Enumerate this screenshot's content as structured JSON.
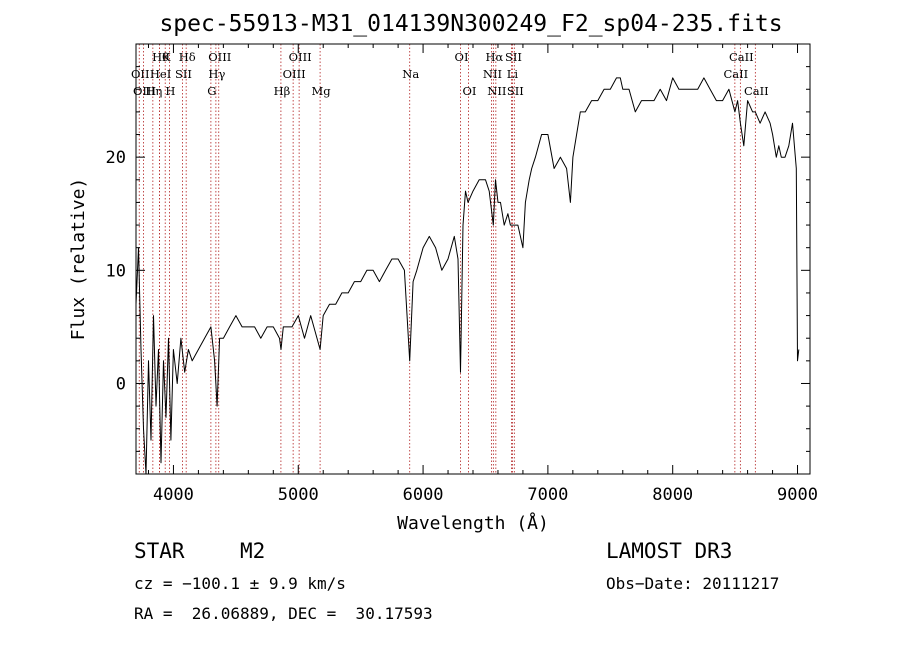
{
  "chart_data": {
    "type": "line",
    "title": "spec-55913-M31_014139N300249_F2_sp04-235.fits",
    "xlabel": "Wavelength (Å)",
    "ylabel": "Flux (relative)",
    "xlim": [
      3700,
      9100
    ],
    "ylim": [
      -8,
      30
    ],
    "x_ticks": [
      4000,
      5000,
      6000,
      7000,
      8000,
      9000
    ],
    "y_ticks": [
      0,
      10,
      20
    ],
    "series": [
      {
        "name": "spectrum",
        "x": [
          3700,
          3720,
          3740,
          3760,
          3780,
          3800,
          3820,
          3840,
          3860,
          3880,
          3900,
          3920,
          3940,
          3960,
          3980,
          4000,
          4030,
          4060,
          4090,
          4120,
          4150,
          4200,
          4250,
          4300,
          4330,
          4350,
          4370,
          4400,
          4450,
          4500,
          4550,
          4600,
          4650,
          4700,
          4750,
          4800,
          4850,
          4862,
          4880,
          4900,
          4950,
          5000,
          5050,
          5100,
          5150,
          5175,
          5200,
          5250,
          5300,
          5350,
          5400,
          5450,
          5500,
          5550,
          5600,
          5650,
          5700,
          5750,
          5800,
          5850,
          5893,
          5920,
          5950,
          6000,
          6050,
          6100,
          6150,
          6200,
          6250,
          6280,
          6300,
          6320,
          6340,
          6360,
          6400,
          6450,
          6500,
          6530,
          6563,
          6580,
          6600,
          6620,
          6650,
          6680,
          6700,
          6730,
          6760,
          6800,
          6820,
          6850,
          6870,
          6900,
          6950,
          7000,
          7050,
          7100,
          7150,
          7180,
          7200,
          7230,
          7260,
          7300,
          7350,
          7400,
          7450,
          7500,
          7550,
          7580,
          7600,
          7650,
          7700,
          7750,
          7800,
          7850,
          7900,
          7950,
          8000,
          8050,
          8100,
          8150,
          8200,
          8250,
          8300,
          8350,
          8400,
          8450,
          8498,
          8520,
          8542,
          8570,
          8600,
          8640,
          8662,
          8700,
          8740,
          8780,
          8800,
          8830,
          8850,
          8870,
          8900,
          8930,
          8960,
          8990,
          9000,
          9010
        ],
        "y": [
          7,
          12,
          3,
          -4,
          -8,
          2,
          -5,
          6,
          -2,
          3,
          -7,
          2,
          -3,
          4,
          -5,
          3,
          0,
          4,
          1,
          3,
          2,
          3,
          4,
          5,
          2,
          -2,
          4,
          4,
          5,
          6,
          5,
          5,
          5,
          4,
          5,
          5,
          4,
          3,
          5,
          5,
          5,
          6,
          4,
          6,
          4,
          3,
          6,
          7,
          7,
          8,
          8,
          9,
          9,
          10,
          10,
          9,
          10,
          11,
          11,
          10,
          2,
          9,
          10,
          12,
          13,
          12,
          10,
          11,
          13,
          11,
          1,
          14,
          17,
          16,
          17,
          18,
          18,
          17,
          14,
          18,
          16,
          16,
          14,
          15,
          14,
          14,
          14,
          12,
          16,
          18,
          19,
          20,
          22,
          22,
          19,
          20,
          19,
          16,
          20,
          22,
          24,
          24,
          25,
          25,
          26,
          26,
          27,
          27,
          26,
          26,
          24,
          25,
          25,
          25,
          26,
          25,
          27,
          26,
          26,
          26,
          26,
          27,
          26,
          25,
          25,
          26,
          24,
          25,
          23,
          21,
          25,
          24,
          24,
          23,
          24,
          23,
          22,
          20,
          21,
          20,
          20,
          21,
          23,
          19,
          2,
          3
        ]
      }
    ],
    "line_markers": [
      {
        "wave": 3726,
        "label": "OII",
        "row": 2
      },
      {
        "wave": 3760,
        "label": "OIII",
        "row": 3
      },
      {
        "wave": 3835,
        "label": "Hη",
        "row": 3
      },
      {
        "wave": 3889,
        "label": "Hθ",
        "row": 1
      },
      {
        "wave": 3889,
        "label": "HeI",
        "row": 2
      },
      {
        "wave": 3934,
        "label": "K",
        "row": 1
      },
      {
        "wave": 3968,
        "label": "H",
        "row": 3
      },
      {
        "wave": 4072,
        "label": "SII",
        "row": 2
      },
      {
        "wave": 4102,
        "label": "Hδ",
        "row": 1
      },
      {
        "wave": 4300,
        "label": "G",
        "row": 3
      },
      {
        "wave": 4340,
        "label": "Hγ",
        "row": 2
      },
      {
        "wave": 4363,
        "label": "OIII",
        "row": 1
      },
      {
        "wave": 4861,
        "label": "Hβ",
        "row": 3
      },
      {
        "wave": 4959,
        "label": "OIII",
        "row": 2
      },
      {
        "wave": 5007,
        "label": "OIII",
        "row": 1
      },
      {
        "wave": 5175,
        "label": "Mg",
        "row": 3
      },
      {
        "wave": 5893,
        "label": "Na",
        "row": 2
      },
      {
        "wave": 6300,
        "label": "OI",
        "row": 1
      },
      {
        "wave": 6364,
        "label": "OI",
        "row": 3
      },
      {
        "wave": 6548,
        "label": "NII",
        "row": 2
      },
      {
        "wave": 6563,
        "label": "Hα",
        "row": 1
      },
      {
        "wave": 6583,
        "label": "NII",
        "row": 3
      },
      {
        "wave": 6708,
        "label": "Li",
        "row": 2
      },
      {
        "wave": 6716,
        "label": "SII",
        "row": 1
      },
      {
        "wave": 6731,
        "label": "SII",
        "row": 3
      },
      {
        "wave": 8498,
        "label": "CaII",
        "row": 2
      },
      {
        "wave": 8542,
        "label": "CaII",
        "row": 1
      },
      {
        "wave": 8662,
        "label": "CaII",
        "row": 3
      }
    ]
  },
  "info": {
    "object_type": "STAR",
    "subclass": "M2",
    "survey": "LAMOST DR3",
    "cz": "cz = −100.1 ± 9.9 km/s",
    "obs_date": "Obs−Date: 20111217",
    "coords": "RA =  26.06889, DEC =  30.17593"
  },
  "colors": {
    "marker": "#b22222",
    "spectrum": "#000000"
  }
}
